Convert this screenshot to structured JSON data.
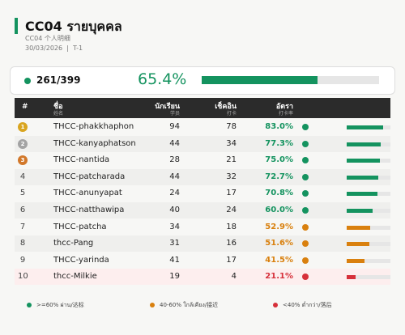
{
  "header": {
    "title": "CC04  รายบุคคล",
    "subtitle": "CC04 个人明细",
    "date": "30/03/2026",
    "period": "T-1"
  },
  "summary": {
    "count_label": "261/399",
    "rate": 65.4,
    "rate_label": "65.4%",
    "color": "#14935f"
  },
  "table": {
    "columns": [
      {
        "label": "#"
      },
      {
        "label": "ชื่อ",
        "sub": "姓名"
      },
      {
        "label": "นักเรียน",
        "sub": "学员"
      },
      {
        "label": "เช็คอิน",
        "sub": "打卡"
      },
      {
        "label": "อัตรา",
        "sub": "打卡率"
      }
    ],
    "rows": [
      {
        "rank": 1,
        "badge": "#d9a520",
        "name": "THCC-phakkhaphon",
        "students": 94,
        "checkins": 78,
        "rate": 83.0,
        "rate_label": "83.0%",
        "color": "#14935f"
      },
      {
        "rank": 2,
        "badge": "#a3a3a3",
        "name": "THCC-kanyaphatson",
        "students": 44,
        "checkins": 34,
        "rate": 77.3,
        "rate_label": "77.3%",
        "color": "#14935f"
      },
      {
        "rank": 3,
        "badge": "#d2782a",
        "name": "THCC-nantida",
        "students": 28,
        "checkins": 21,
        "rate": 75.0,
        "rate_label": "75.0%",
        "color": "#14935f"
      },
      {
        "rank": 4,
        "name": "THCC-patcharada",
        "students": 44,
        "checkins": 32,
        "rate": 72.7,
        "rate_label": "72.7%",
        "color": "#14935f"
      },
      {
        "rank": 5,
        "name": "THCC-anunyapat",
        "students": 24,
        "checkins": 17,
        "rate": 70.8,
        "rate_label": "70.8%",
        "color": "#14935f"
      },
      {
        "rank": 6,
        "name": "THCC-natthawipa",
        "students": 40,
        "checkins": 24,
        "rate": 60.0,
        "rate_label": "60.0%",
        "color": "#14935f"
      },
      {
        "rank": 7,
        "name": "THCC-patcha",
        "students": 34,
        "checkins": 18,
        "rate": 52.9,
        "rate_label": "52.9%",
        "color": "#d9800e"
      },
      {
        "rank": 8,
        "name": "thcc-Pang",
        "students": 31,
        "checkins": 16,
        "rate": 51.6,
        "rate_label": "51.6%",
        "color": "#d9800e"
      },
      {
        "rank": 9,
        "name": "THCC-yarinda",
        "students": 41,
        "checkins": 17,
        "rate": 41.5,
        "rate_label": "41.5%",
        "color": "#d9800e"
      },
      {
        "rank": 10,
        "name": "thcc-Milkie",
        "students": 19,
        "checkins": 4,
        "rate": 21.1,
        "rate_label": "21.1%",
        "color": "#d6303a",
        "highlight": "#fdeeee"
      }
    ]
  },
  "legend": [
    {
      "label": ">=60% ผ่าน/达标",
      "color": "#14935f"
    },
    {
      "label": "40-60% ใกล้เคียง/接近",
      "color": "#d9800e"
    },
    {
      "label": "<40% ต่ำกว่า/落后",
      "color": "#d6303a"
    }
  ]
}
